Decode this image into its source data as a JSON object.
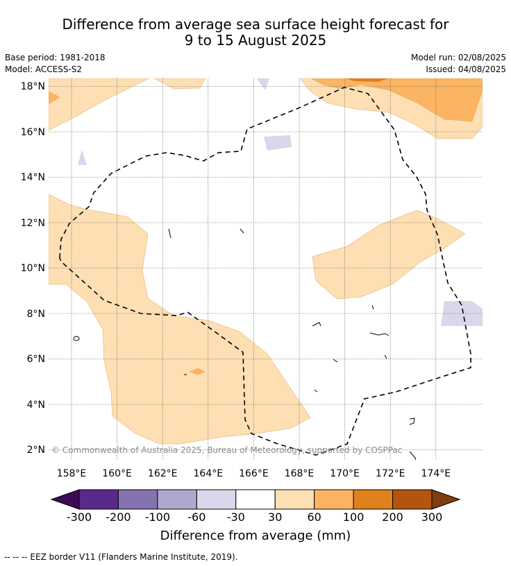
{
  "title": {
    "line1": "Difference from average sea surface height forecast for",
    "line2": "9 to 15 August 2025"
  },
  "meta": {
    "base_period": "Base period: 1981-2018",
    "model": "Model: ACCESS-S2",
    "model_run": "Model run: 02/08/2025",
    "issued": "Issued: 04/08/2025"
  },
  "map": {
    "lon_range": [
      157,
      176
    ],
    "lat_range": [
      1.5,
      18.3
    ],
    "lon_ticks": [
      158,
      160,
      162,
      164,
      166,
      168,
      170,
      172,
      174
    ],
    "lon_labels": [
      "158°E",
      "160°E",
      "162°E",
      "164°E",
      "166°E",
      "168°E",
      "170°E",
      "172°E",
      "174°E"
    ],
    "lat_ticks": [
      2,
      4,
      6,
      8,
      10,
      12,
      14,
      16,
      18
    ],
    "lat_labels": [
      "2°N",
      "4°N",
      "6°N",
      "8°N",
      "10°N",
      "12°N",
      "14°N",
      "16°N",
      "18°N"
    ],
    "gridlines": true,
    "copyright": "© Commonwealth of Australia 2025, Bureau of Meteorology, supported by COSPPac"
  },
  "colorbar": {
    "title": "Difference from average (mm)",
    "labels": [
      "-300",
      "-200",
      "-100",
      "-60",
      "-30",
      "30",
      "60",
      "100",
      "200",
      "300"
    ],
    "colors": [
      "#5a2a8a",
      "#8573b0",
      "#b0a7d1",
      "#d8d8ea",
      "#ffffff",
      "#fddfb3",
      "#fbb462",
      "#e0801a",
      "#b3550e"
    ],
    "low_extend_color": "#3d0a55",
    "high_extend_color": "#7f3e0e"
  },
  "footnote": "--  --  -- EEZ border V11 (Flanders Marine Institute, 2019)."
}
